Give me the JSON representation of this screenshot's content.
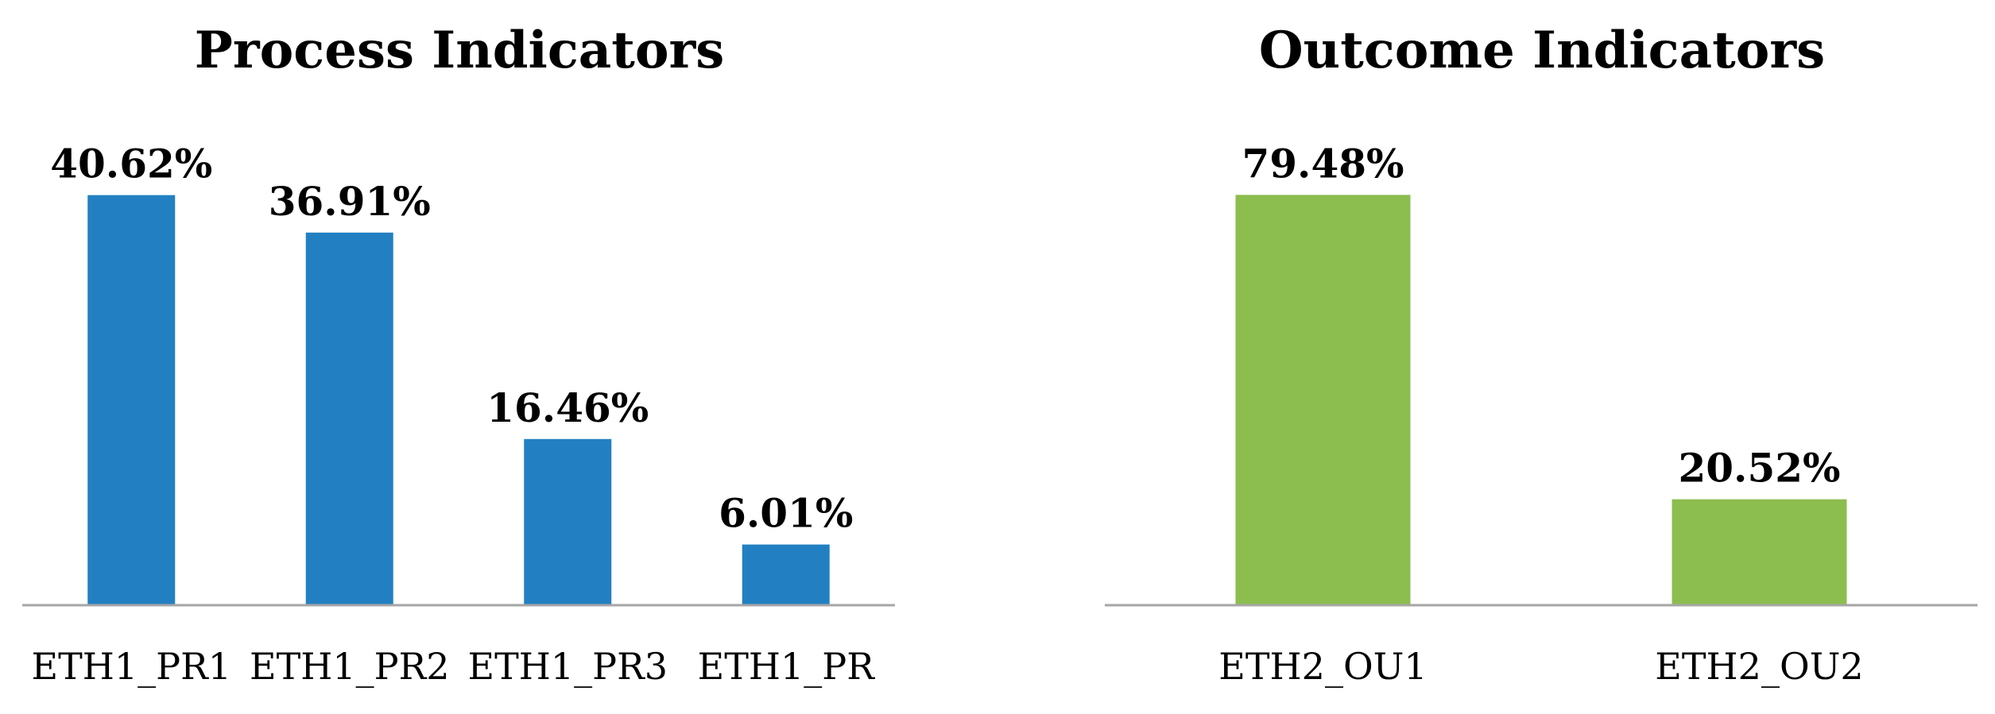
{
  "chart_data": [
    {
      "type": "bar",
      "title": "Process Indicators",
      "categories": [
        "ETH1_PR1",
        "ETH1_PR2",
        "ETH1_PR3",
        "ETH1_PR"
      ],
      "values": [
        40.62,
        36.91,
        16.46,
        6.01
      ],
      "value_labels": [
        "40.62%",
        "36.91%",
        "16.46%",
        "6.01%"
      ],
      "unit": "%",
      "color": "#2280c2",
      "ylim": [
        0,
        45
      ],
      "grid": false,
      "legend": "none"
    },
    {
      "type": "bar",
      "title": "Outcome Indicators",
      "categories": [
        "ETH2_OU1",
        "ETH2_OU2"
      ],
      "values": [
        79.48,
        20.52
      ],
      "value_labels": [
        "79.48%",
        "20.52%"
      ],
      "unit": "%",
      "color": "#8cbd4f",
      "ylim": [
        0,
        88
      ],
      "grid": false,
      "legend": "none"
    }
  ]
}
